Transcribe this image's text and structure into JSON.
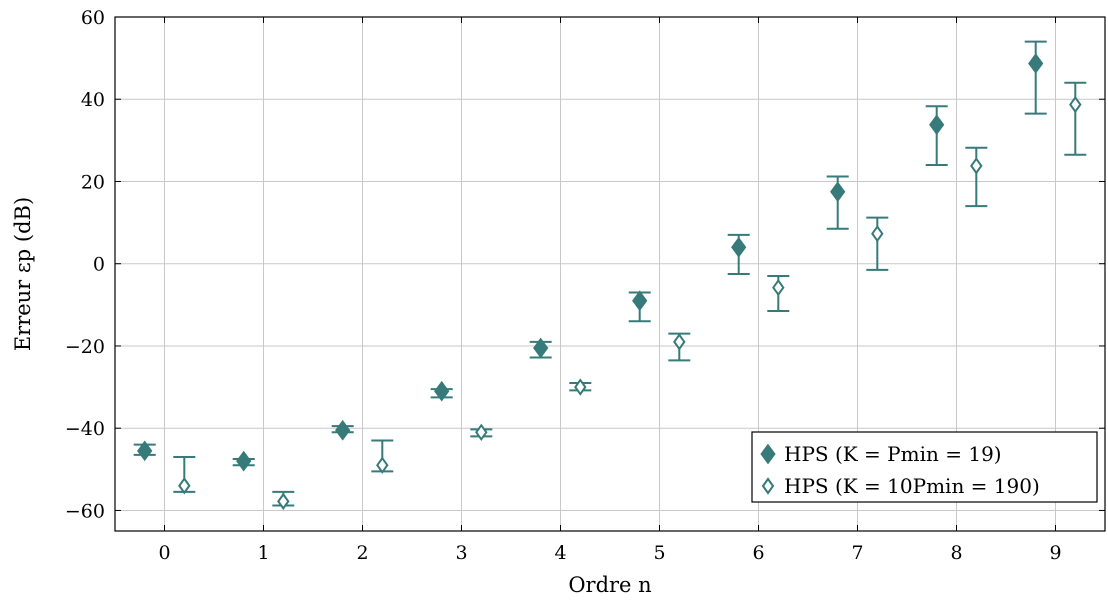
{
  "chart_data": {
    "type": "scatter",
    "xlabel": "Ordre n",
    "ylabel": "Erreur εp (dB)",
    "xlim": [
      -0.5,
      9.5
    ],
    "ylim": [
      -65,
      60
    ],
    "xticks": [
      0,
      1,
      2,
      3,
      4,
      5,
      6,
      7,
      8,
      9
    ],
    "yticks": [
      -60,
      -40,
      -20,
      0,
      20,
      40,
      60
    ],
    "ytick_labels": [
      "−60",
      "−40",
      "−20",
      "0",
      "20",
      "40",
      "60"
    ],
    "grid": true,
    "legend_position": "bottom-right",
    "colors": {
      "series": "#367a7a"
    },
    "series": [
      {
        "name": "HPS (K = Pmin = 19)",
        "marker": "filled-diamond",
        "x": [
          -0.2,
          0.8,
          1.8,
          2.8,
          3.8,
          4.8,
          5.8,
          6.8,
          7.8,
          8.8
        ],
        "y": [
          -45.5,
          -48.0,
          -40.5,
          -31.0,
          -20.5,
          -9.0,
          4.0,
          17.5,
          33.8,
          48.7
        ],
        "err_low": [
          -46.5,
          -49.0,
          -41.0,
          -32.5,
          -22.8,
          -14.0,
          -2.5,
          8.5,
          24.0,
          36.5
        ],
        "err_high": [
          -44.0,
          -47.5,
          -39.5,
          -30.5,
          -19.0,
          -7.0,
          7.0,
          21.2,
          38.3,
          54.0
        ]
      },
      {
        "name": "HPS (K = 10Pmin = 190)",
        "marker": "open-diamond",
        "x": [
          0.2,
          1.2,
          2.2,
          3.2,
          4.2,
          5.2,
          6.2,
          7.2,
          8.2,
          9.2
        ],
        "y": [
          -54.0,
          -57.8,
          -49.0,
          -41.0,
          -30.0,
          -19.0,
          -5.8,
          7.3,
          23.8,
          38.7
        ],
        "err_low": [
          -55.5,
          -58.8,
          -50.5,
          -42.0,
          -30.8,
          -23.5,
          -11.5,
          -1.5,
          14.0,
          26.5
        ],
        "err_high": [
          -47.0,
          -55.5,
          -43.0,
          -40.3,
          -29.0,
          -17.0,
          -3.0,
          11.2,
          28.2,
          44.0
        ]
      }
    ]
  }
}
